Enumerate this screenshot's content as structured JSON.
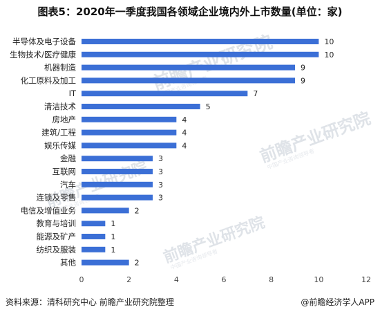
{
  "chart_data": {
    "type": "bar",
    "orientation": "horizontal",
    "title": "图表5：2020年一季度我国各领域企业境内外上市数量(单位：家)",
    "categories": [
      "半导体及电子设备",
      "生物技术/医疗健康",
      "机器制造",
      "化工原料及加工",
      "IT",
      "清洁技术",
      "房地产",
      "建筑/工程",
      "娱乐传媒",
      "金融",
      "互联网",
      "汽车",
      "连锁及零售",
      "电信及增值业务",
      "教育与培训",
      "能源及矿产",
      "纺织及服装",
      "其他"
    ],
    "values": [
      10,
      10,
      9,
      9,
      7,
      5,
      4,
      4,
      4,
      3,
      3,
      3,
      3,
      2,
      1,
      1,
      1,
      2
    ],
    "xlim": [
      0,
      12
    ],
    "xticks": [
      0,
      2,
      4,
      6,
      8,
      10,
      12
    ],
    "xlabel": "",
    "ylabel": "",
    "bar_color": "#3b6fd6",
    "data_labels": true,
    "grid": false
  },
  "footer": {
    "source": "资料来源：清科研究中心 前瞻产业研究院整理",
    "brand": "@前瞻经济学人APP"
  },
  "watermark": {
    "text": "前瞻产业研究院",
    "sub": "中国产业咨询领导者"
  }
}
